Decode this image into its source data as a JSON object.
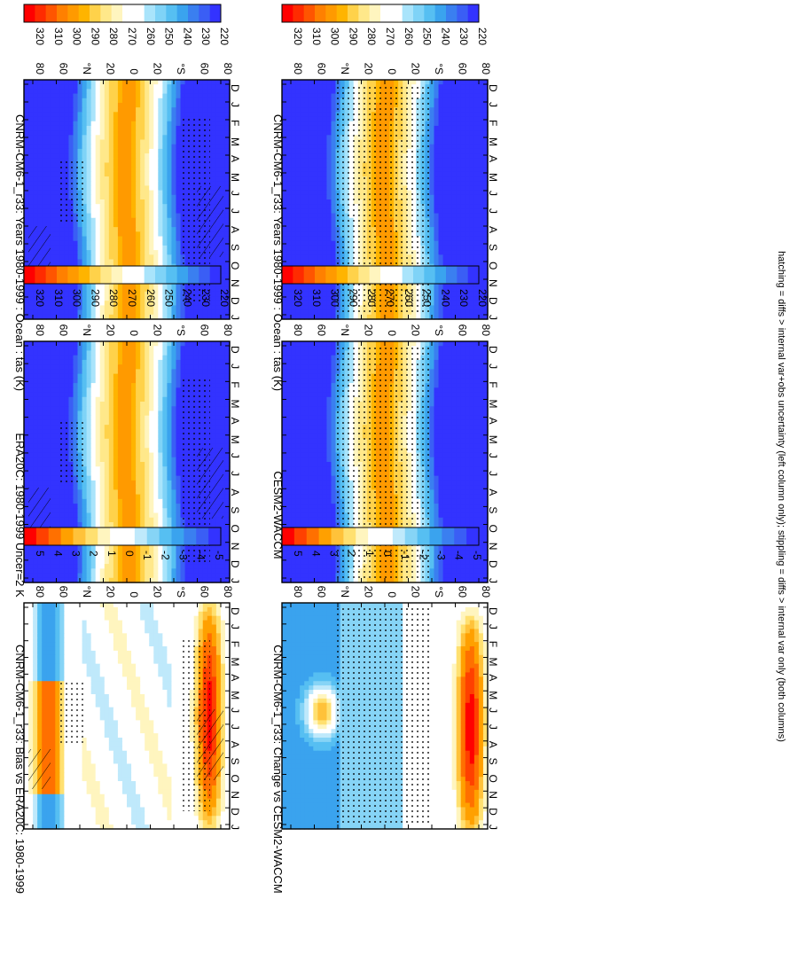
{
  "footnote": "hatching = diffs > internal var+obs uncertainty (left column only); stippling = diffs > internal var only (both columns)",
  "months": [
    "D",
    "J",
    "F",
    "M",
    "A",
    "M",
    "J",
    "J",
    "A",
    "S",
    "O",
    "N",
    "D",
    "J"
  ],
  "lat_labels": [
    "80",
    "60",
    "°N",
    "20",
    "0",
    "20",
    "°S",
    "60",
    "80"
  ],
  "colors": {
    "abs": [
      "#ff0000",
      "#ff2b00",
      "#ff5500",
      "#ff8000",
      "#ff9a00",
      "#ffb400",
      "#ffd24a",
      "#ffe88a",
      "#fff5bf",
      "#ffffff",
      "#ffffff",
      "#a9e4fb",
      "#7fd3f7",
      "#56bff2",
      "#3aa3ee",
      "#3a7ff0",
      "#3a5ef5",
      "#3333ff"
    ],
    "diff": [
      "#ff0000",
      "#ff4000",
      "#ff7000",
      "#ffa000",
      "#ffc23a",
      "#ffe070",
      "#fff5bf",
      "#ffffff",
      "#ffffff",
      "#bfe9fb",
      "#86d4f6",
      "#56bff2",
      "#3aa3ee",
      "#3a7ff0",
      "#3a5ef5",
      "#3333ff"
    ]
  },
  "chart_data": [
    {
      "type": "heatmap",
      "title": "CNRM-CM6-1_r33: Years 1980-1999 : Ocean : tas (K)",
      "x": [
        "D",
        "J",
        "F",
        "M",
        "A",
        "M",
        "J",
        "J",
        "A",
        "S",
        "O",
        "N",
        "D",
        "J"
      ],
      "y": [
        "80",
        "60",
        "°N",
        "20",
        "0",
        "20",
        "°S",
        "60",
        "80"
      ],
      "colorbar_ticks": [
        "320",
        "310",
        "300",
        "290",
        "280",
        "270",
        "260",
        "250",
        "240",
        "230",
        "220"
      ],
      "value_range": [
        220,
        320
      ]
    },
    {
      "type": "heatmap",
      "title": "CNRM-CM6-1_r33: Years 1980-1999 : Ocean : tas (K)",
      "x": [
        "D",
        "J",
        "F",
        "M",
        "A",
        "M",
        "J",
        "J",
        "A",
        "S",
        "O",
        "N",
        "D",
        "J"
      ],
      "y": [
        "80",
        "60",
        "°N",
        "20",
        "0",
        "20",
        "°S",
        "60",
        "80"
      ],
      "colorbar_ticks": [
        "320",
        "310",
        "300",
        "290",
        "280",
        "270",
        "260",
        "250",
        "240",
        "230",
        "220"
      ],
      "value_range": [
        220,
        320
      ]
    },
    {
      "type": "heatmap",
      "title": "ERA20C: 1980-1999 Uncer=2 K",
      "x": [
        "D",
        "J",
        "F",
        "M",
        "A",
        "M",
        "J",
        "J",
        "A",
        "S",
        "O",
        "N",
        "D",
        "J"
      ],
      "y": [
        "80",
        "60",
        "°N",
        "20",
        "0",
        "20",
        "°S",
        "60",
        "80"
      ],
      "colorbar_ticks": [
        "320",
        "310",
        "300",
        "290",
        "280",
        "270",
        "260",
        "250",
        "240",
        "230",
        "220"
      ],
      "value_range": [
        220,
        320
      ]
    },
    {
      "type": "heatmap",
      "title": "CESM2-WACCM",
      "x": [
        "D",
        "J",
        "F",
        "M",
        "A",
        "M",
        "J",
        "J",
        "A",
        "S",
        "O",
        "N",
        "D",
        "J"
      ],
      "y": [
        "80",
        "60",
        "°N",
        "20",
        "0",
        "20",
        "°S",
        "60",
        "80"
      ],
      "colorbar_ticks": [
        "320",
        "310",
        "300",
        "290",
        "280",
        "270",
        "260",
        "250",
        "240",
        "230",
        "220"
      ],
      "value_range": [
        220,
        320
      ]
    },
    {
      "type": "heatmap",
      "title": "CNRM-CM6-1_r33: Bias vs ERA20C: 1980-1999",
      "x": [
        "D",
        "J",
        "F",
        "M",
        "A",
        "M",
        "J",
        "J",
        "A",
        "S",
        "O",
        "N",
        "D",
        "J"
      ],
      "y": [
        "80",
        "60",
        "°N",
        "20",
        "0",
        "20",
        "°S",
        "60",
        "80"
      ],
      "colorbar_ticks": [
        "5",
        "4",
        "3",
        "2",
        "1",
        "0",
        "-1",
        "-2",
        "-3",
        "-4",
        "-5"
      ],
      "value_range": [
        -5,
        5
      ]
    },
    {
      "type": "heatmap",
      "title": "CNRM-CM6-1_r33: Change vs CESM2-WACCM",
      "x": [
        "D",
        "J",
        "F",
        "M",
        "A",
        "M",
        "J",
        "J",
        "A",
        "S",
        "O",
        "N",
        "D",
        "J"
      ],
      "y": [
        "80",
        "60",
        "°N",
        "20",
        "0",
        "20",
        "°S",
        "60",
        "80"
      ],
      "colorbar_ticks": [
        "5",
        "4",
        "3",
        "2",
        "1",
        "0",
        "-1",
        "-2",
        "-3",
        "-4",
        "-5"
      ],
      "value_range": [
        -5,
        5
      ]
    }
  ]
}
